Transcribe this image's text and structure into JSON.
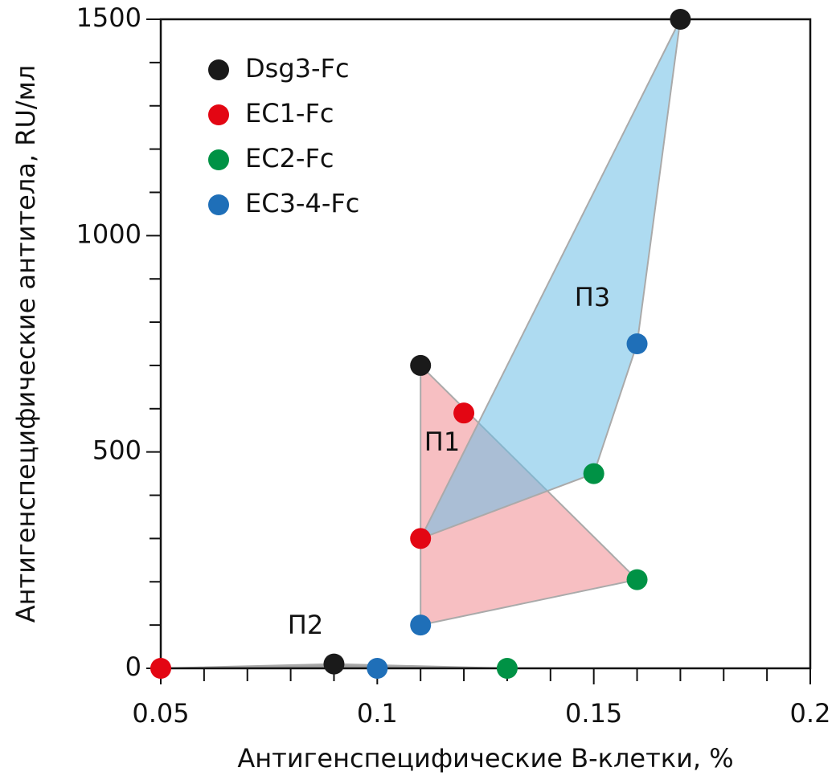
{
  "chart_data": {
    "type": "scatter",
    "x_label": "Антигенспецифические B-клетки, %",
    "y_label": "Антигенспецифические антитела, RU/мл",
    "xlim": [
      0.05,
      0.2
    ],
    "xticks": [
      0.05,
      0.1,
      0.15,
      0.2
    ],
    "xminor": [
      0.06,
      0.07,
      0.08,
      0.09,
      0.11,
      0.12,
      0.13,
      0.14,
      0.16,
      0.17,
      0.18,
      0.19
    ],
    "ylim": [
      0,
      1500
    ],
    "yticks": [
      0,
      500,
      1000,
      1500
    ],
    "yminor": [
      100,
      200,
      300,
      400,
      600,
      700,
      800,
      900,
      1100,
      1200,
      1300,
      1400
    ],
    "legend": "top-left",
    "regions": [
      {
        "label": "П1",
        "color": "#f08a90"
      },
      {
        "label": "П2",
        "color": "#555555"
      },
      {
        "label": "П3",
        "color": "#6cbde6"
      }
    ],
    "series": [
      {
        "name": "Dsg3-Fc",
        "color": "#1a1a1a",
        "x": [
          0.17,
          0.11,
          0.09
        ],
        "values": [
          1500,
          700,
          10
        ],
        "region": [
          "П3",
          "П1",
          "П2"
        ]
      },
      {
        "name": "EC1-Fc",
        "color": "#e30613",
        "x": [
          0.12,
          0.11,
          0.05
        ],
        "values": [
          590,
          300,
          0
        ],
        "region": [
          "П1",
          "П3",
          "П2"
        ]
      },
      {
        "name": "EC2-Fc",
        "color": "#009245",
        "x": [
          0.15,
          0.16,
          0.13
        ],
        "values": [
          450,
          205,
          0
        ],
        "region": [
          "П3",
          "П1",
          "П2"
        ]
      },
      {
        "name": "EC3-4-Fc",
        "color": "#1f6fb8",
        "x": [
          0.16,
          0.11,
          0.1
        ],
        "values": [
          750,
          100,
          0
        ],
        "region": [
          "П3",
          "П1",
          "П2"
        ]
      }
    ]
  }
}
